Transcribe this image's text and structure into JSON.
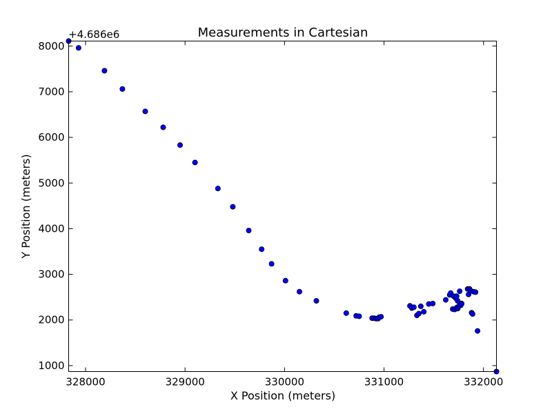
{
  "chart_data": {
    "type": "scatter",
    "title": "Measurements in Cartesian",
    "xlabel": "X Position (meters)",
    "ylabel": "Y Position (meters)",
    "offset_label": "+4.686e6",
    "xlim": [
      327830,
      332130
    ],
    "ylim": [
      870,
      8110
    ],
    "x_ticks": [
      328000,
      329000,
      330000,
      331000,
      332000
    ],
    "x_tick_labels": [
      "328000",
      "329000",
      "330000",
      "331000",
      "332000"
    ],
    "y_ticks": [
      1000,
      2000,
      3000,
      4000,
      5000,
      6000,
      7000,
      8000
    ],
    "y_tick_labels": [
      "1000",
      "2000",
      "3000",
      "4000",
      "5000",
      "6000",
      "7000",
      "8000"
    ],
    "grid": false,
    "marker_color": "#0000ff",
    "marker_edge_color": "#000000",
    "points": [
      [
        327830,
        8110
      ],
      [
        327930,
        7960
      ],
      [
        328190,
        7460
      ],
      [
        328370,
        7060
      ],
      [
        328600,
        6570
      ],
      [
        328780,
        6220
      ],
      [
        328950,
        5830
      ],
      [
        329100,
        5450
      ],
      [
        329330,
        4880
      ],
      [
        329480,
        4480
      ],
      [
        329640,
        3960
      ],
      [
        329770,
        3550
      ],
      [
        329870,
        3230
      ],
      [
        330010,
        2860
      ],
      [
        330150,
        2620
      ],
      [
        330320,
        2420
      ],
      [
        330620,
        2150
      ],
      [
        330720,
        2090
      ],
      [
        330750,
        2080
      ],
      [
        330880,
        2040
      ],
      [
        330900,
        2040
      ],
      [
        330920,
        2030
      ],
      [
        330940,
        2030
      ],
      [
        330950,
        2060
      ],
      [
        330970,
        2070
      ],
      [
        331260,
        2310
      ],
      [
        331280,
        2260
      ],
      [
        331300,
        2280
      ],
      [
        331330,
        2100
      ],
      [
        331350,
        2140
      ],
      [
        331370,
        2300
      ],
      [
        331400,
        2180
      ],
      [
        331450,
        2350
      ],
      [
        331490,
        2360
      ],
      [
        331620,
        2440
      ],
      [
        331660,
        2550
      ],
      [
        331670,
        2590
      ],
      [
        331690,
        2240
      ],
      [
        331700,
        2520
      ],
      [
        331710,
        2230
      ],
      [
        331720,
        2480
      ],
      [
        331730,
        2270
      ],
      [
        331730,
        2520
      ],
      [
        331740,
        2420
      ],
      [
        331740,
        2250
      ],
      [
        331750,
        2300
      ],
      [
        331760,
        2630
      ],
      [
        331770,
        2320
      ],
      [
        331780,
        2360
      ],
      [
        331780,
        2350
      ],
      [
        331840,
        2680
      ],
      [
        331850,
        2560
      ],
      [
        331860,
        2680
      ],
      [
        331870,
        2640
      ],
      [
        331880,
        2160
      ],
      [
        331890,
        2130
      ],
      [
        331900,
        2620
      ],
      [
        331920,
        2610
      ],
      [
        331940,
        1760
      ],
      [
        332130,
        870
      ]
    ]
  }
}
